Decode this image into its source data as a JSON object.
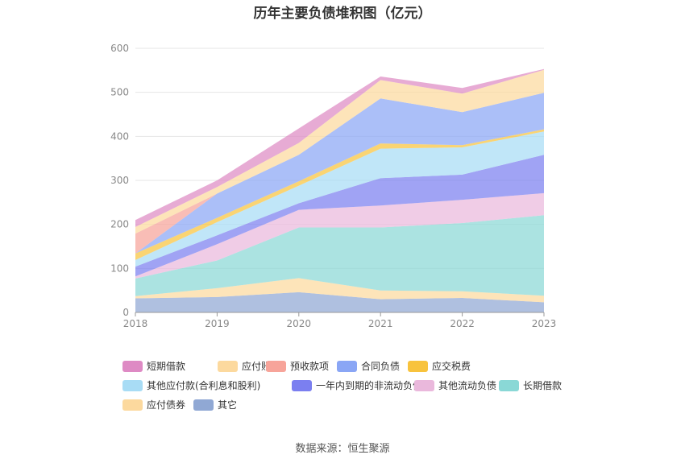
{
  "title": "历年主要负债堆积图（亿元）",
  "source": "数据来源：恒生聚源",
  "colors": {
    "短期借款": "#de8ac4",
    "应付账款": "#fcd99e",
    "预收款项": "#f7a49a",
    "合同负债": "#8aa6f5",
    "应交税费": "#f8c33d",
    "其他应付款(合利息和股利)": "#a8dcf5",
    "一年内到期的非流动负债": "#7b7ff0",
    "其他流动负债": "#eab8dc",
    "长期借款": "#8ad8d6",
    "应付债券": "#fcd99e",
    "其它": "#90a8d4"
  },
  "chart_data": {
    "type": "area",
    "stacked": true,
    "categories": [
      "2018",
      "2019",
      "2020",
      "2021",
      "2022",
      "2023"
    ],
    "ylim": [
      0,
      600
    ],
    "yticks": [
      0,
      100,
      200,
      300,
      400,
      500,
      600
    ],
    "grid": true,
    "legend_position": "bottom",
    "series": [
      {
        "name": "其它",
        "values": [
          32,
          35,
          46,
          30,
          33,
          23
        ]
      },
      {
        "name": "应付债券",
        "values": [
          5,
          20,
          32,
          20,
          15,
          15
        ]
      },
      {
        "name": "长期借款",
        "values": [
          40,
          63,
          115,
          143,
          155,
          183
        ]
      },
      {
        "name": "其他流动负债",
        "values": [
          5,
          37,
          40,
          50,
          53,
          50
        ]
      },
      {
        "name": "一年内到期的非流动负债",
        "values": [
          22,
          20,
          15,
          62,
          57,
          87
        ]
      },
      {
        "name": "其他应付款(合利息和股利)",
        "values": [
          15,
          30,
          40,
          67,
          62,
          53
        ]
      },
      {
        "name": "应交税费",
        "values": [
          15,
          10,
          10,
          12,
          5,
          5
        ]
      },
      {
        "name": "合同负债",
        "values": [
          0,
          55,
          60,
          102,
          75,
          83
        ]
      },
      {
        "name": "预收款项",
        "values": [
          45,
          0,
          0,
          0,
          0,
          0
        ]
      },
      {
        "name": "应付账款",
        "values": [
          15,
          15,
          27,
          42,
          42,
          52
        ]
      },
      {
        "name": "短期借款",
        "values": [
          16,
          15,
          33,
          8,
          13,
          2
        ]
      }
    ]
  },
  "legend": [
    "短期借款",
    "应付账款",
    "预收款项",
    "合同负债",
    "应交税费",
    "其他应付款(合利息和股利)",
    "一年内到期的非流动负债",
    "其他流动负债",
    "长期借款",
    "应付债券",
    "其它"
  ]
}
